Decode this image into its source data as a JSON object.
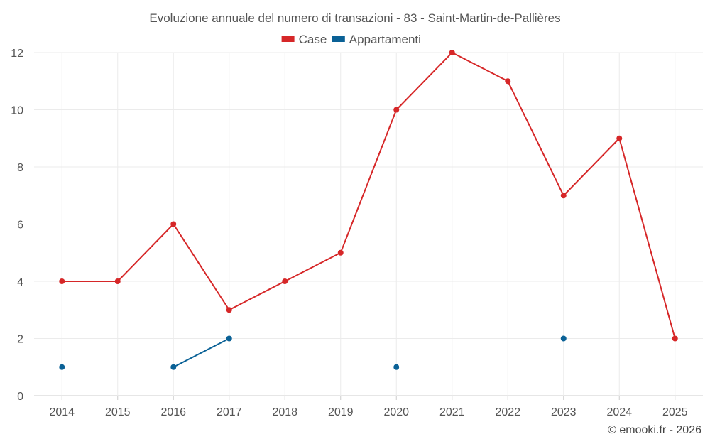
{
  "chart_data": {
    "type": "line",
    "title": "Evoluzione annuale del numero di transazioni - 83 - Saint-Martin-de-Pallières",
    "xlabel": "",
    "ylabel": "",
    "categories": [
      "2014",
      "2015",
      "2016",
      "2017",
      "2018",
      "2019",
      "2020",
      "2021",
      "2022",
      "2023",
      "2024",
      "2025"
    ],
    "ylim": [
      0,
      12
    ],
    "yticks": [
      0,
      2,
      4,
      6,
      8,
      10,
      12
    ],
    "grid": true,
    "legend_position": "top-center",
    "series": [
      {
        "name": "Case",
        "color": "#d62728",
        "values": [
          4,
          4,
          6,
          3,
          4,
          5,
          10,
          12,
          11,
          7,
          9,
          2
        ]
      },
      {
        "name": "Appartamenti",
        "color": "#0a6196",
        "values": [
          1,
          null,
          1,
          2,
          null,
          null,
          1,
          null,
          null,
          2,
          null,
          null
        ]
      }
    ]
  },
  "credit": "© emooki.fr - 2026"
}
